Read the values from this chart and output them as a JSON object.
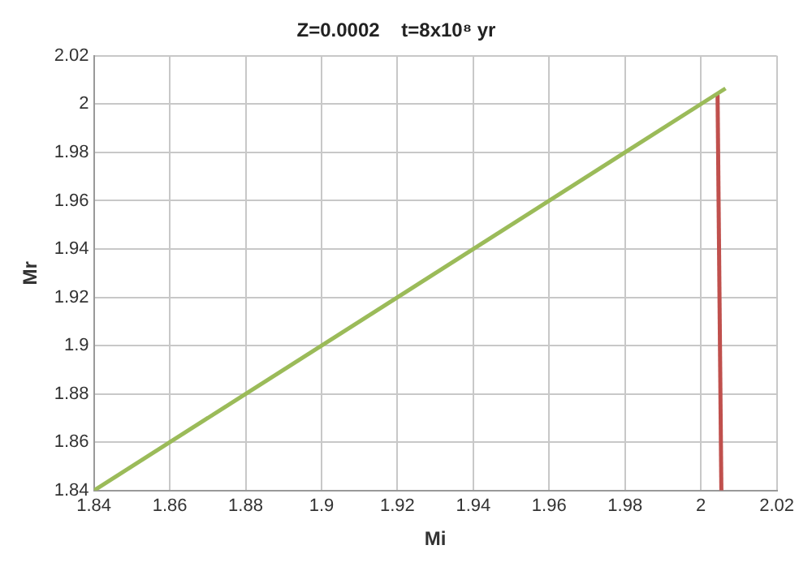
{
  "chart_data": {
    "type": "line",
    "title": "Z=0.0002    t=8x10⁸ yr",
    "xlabel": "Mi",
    "ylabel": "Mr",
    "series": [
      {
        "color": "#9bbb59",
        "x": [
          1.84,
          2.0065
        ],
        "values": [
          1.84,
          2.0065
        ]
      },
      {
        "color": "#c0504d",
        "x": [
          2.0044,
          2.0054
        ],
        "values": [
          2.004,
          1.84
        ]
      }
    ],
    "xlim": [
      1.84,
      2.02
    ],
    "xticks": [
      1.84,
      1.86,
      1.88,
      1.9,
      1.92,
      1.94,
      1.96,
      1.98,
      2,
      2.02
    ],
    "ylim": [
      1.84,
      2.02
    ],
    "yticks": [
      1.84,
      1.86,
      1.88,
      1.9,
      1.92,
      1.94,
      1.96,
      1.98,
      2,
      2.02
    ],
    "grid": true,
    "marker": "none",
    "line_style": "solid"
  }
}
